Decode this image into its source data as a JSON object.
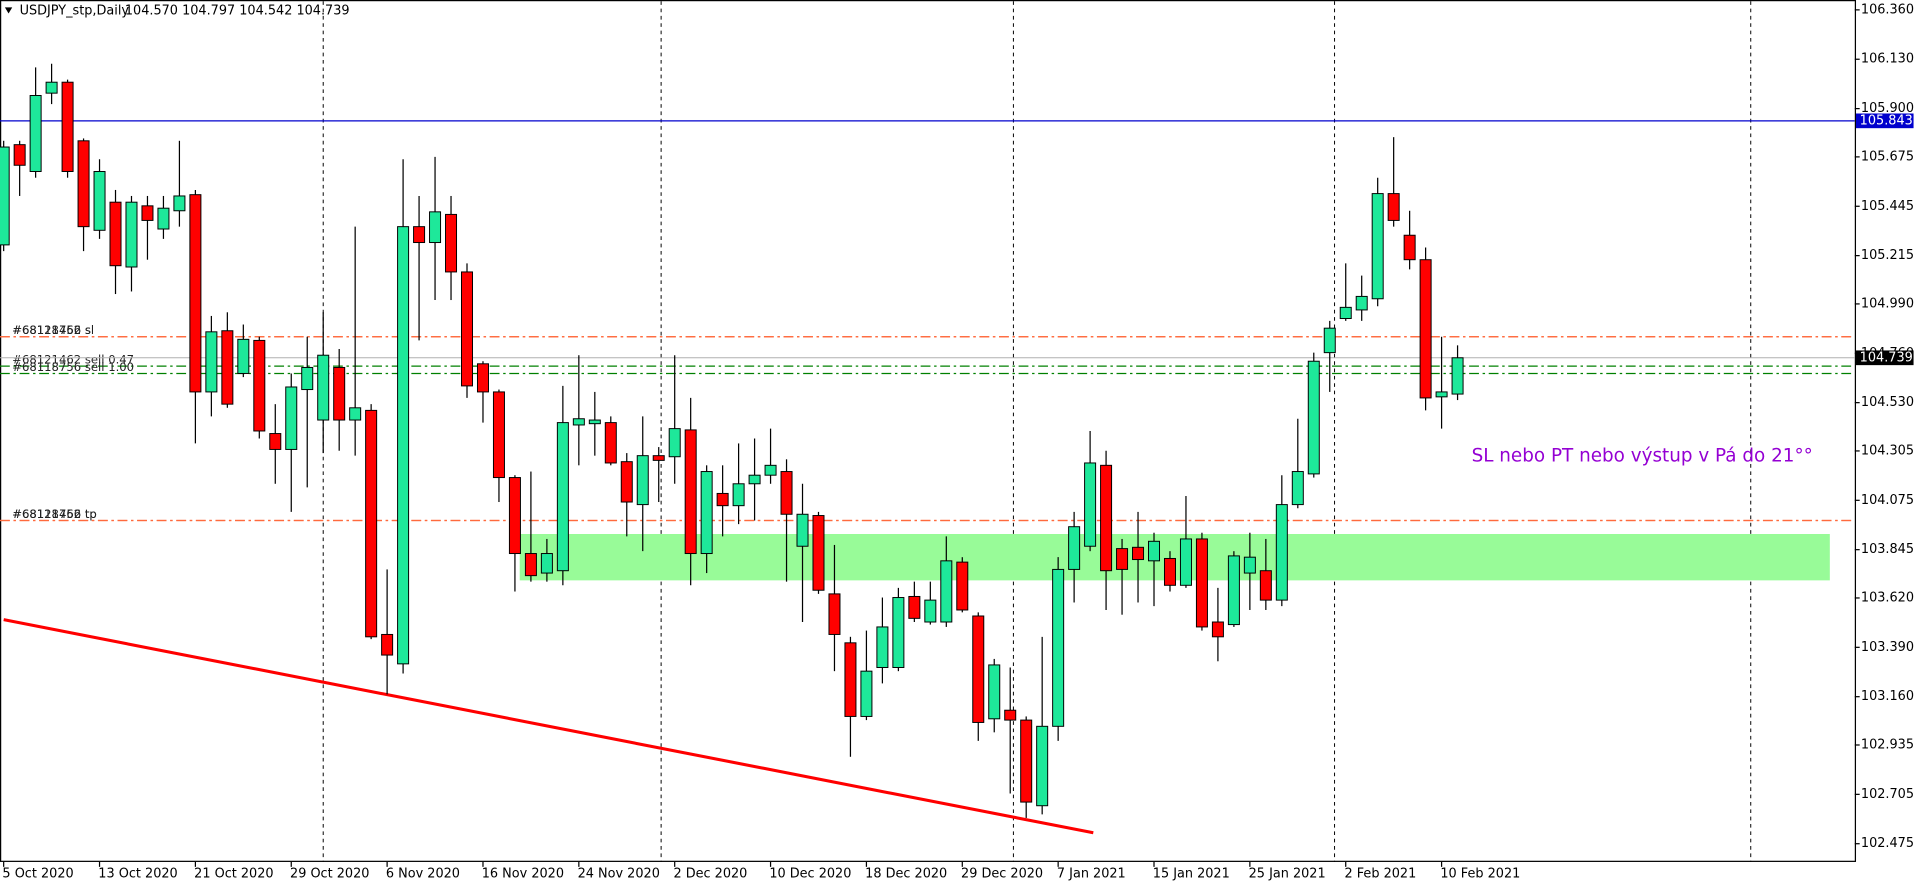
{
  "chart_data": {
    "type": "candlestick",
    "symbol": "USDJPY_stp,Daily",
    "ohlc_text": "104.570 104.797 104.542 104.739",
    "up_color": "#1ee89a",
    "down_color": "#ff0000",
    "categories": [
      "5 Oct 2020",
      null,
      null,
      null,
      null,
      null,
      "13 Oct 2020",
      null,
      null,
      null,
      null,
      null,
      "21 Oct 2020",
      null,
      null,
      null,
      null,
      null,
      "29 Oct 2020",
      null,
      null,
      null,
      null,
      null,
      "6 Nov 2020",
      null,
      null,
      null,
      null,
      null,
      "16 Nov 2020",
      null,
      null,
      null,
      null,
      null,
      "24 Nov 2020",
      null,
      null,
      null,
      null,
      null,
      "2 Dec 2020",
      null,
      null,
      null,
      null,
      null,
      "10 Dec 2020",
      null,
      null,
      null,
      null,
      null,
      "18 Dec 2020",
      null,
      null,
      null,
      null,
      null,
      "29 Dec 2020",
      null,
      null,
      null,
      null,
      null,
      "7 Jan 2021",
      null,
      null,
      null,
      null,
      null,
      "15 Jan 2021",
      null,
      null,
      null,
      null,
      null,
      "25 Jan 2021",
      null,
      null,
      null,
      null,
      null,
      "2 Feb 2021",
      null,
      null,
      null,
      null,
      null,
      "10 Feb 2021",
      null
    ],
    "open": [
      105.265,
      105.732,
      105.607,
      105.972,
      106.023,
      105.75,
      105.333,
      105.464,
      105.162,
      105.447,
      105.339,
      105.424,
      105.499,
      104.58,
      104.865,
      104.666,
      104.82,
      104.386,
      104.312,
      104.591,
      104.449,
      104.694,
      104.449,
      104.494,
      103.45,
      103.313,
      105.35,
      105.276,
      105.407,
      105.139,
      104.711,
      104.58,
      104.181,
      103.827,
      103.736,
      103.747,
      104.426,
      104.432,
      104.437,
      104.255,
      104.055,
      104.283,
      104.278,
      104.403,
      103.827,
      104.107,
      104.05,
      104.152,
      104.192,
      104.209,
      103.861,
      104.004,
      103.639,
      103.411,
      103.068,
      103.296,
      103.296,
      103.627,
      103.508,
      103.508,
      103.787,
      103.536,
      103.057,
      103.097,
      103.051,
      102.652,
      103.022,
      103.753,
      103.861,
      104.238,
      103.85,
      103.856,
      103.793,
      103.804,
      103.679,
      103.895,
      103.508,
      103.496,
      103.736,
      103.747,
      103.61,
      104.055,
      104.198,
      104.763,
      104.922,
      104.962,
      105.014,
      105.504,
      105.31,
      105.196,
      104.557,
      104.57
    ],
    "high": [
      105.75,
      105.75,
      106.092,
      106.109,
      106.035,
      105.761,
      105.664,
      105.521,
      105.493,
      105.493,
      105.493,
      105.75,
      105.521,
      104.934,
      104.951,
      104.894,
      104.837,
      104.523,
      104.666,
      104.837,
      104.951,
      104.78,
      105.35,
      104.523,
      103.753,
      105.664,
      105.493,
      105.675,
      105.493,
      105.179,
      104.723,
      104.591,
      104.192,
      104.209,
      103.895,
      104.608,
      104.751,
      104.58,
      104.466,
      104.295,
      104.466,
      104.323,
      104.751,
      104.552,
      104.238,
      104.238,
      104.34,
      104.363,
      104.409,
      104.266,
      104.152,
      104.021,
      103.867,
      103.439,
      103.468,
      103.622,
      103.667,
      103.696,
      103.696,
      103.907,
      103.81,
      103.553,
      103.336,
      103.296,
      103.068,
      103.439,
      103.81,
      104.021,
      104.398,
      104.306,
      103.895,
      104.021,
      103.924,
      103.838,
      104.095,
      103.924,
      103.667,
      103.838,
      103.924,
      103.895,
      104.192,
      104.455,
      104.763,
      104.911,
      105.179,
      105.122,
      105.578,
      105.767,
      105.424,
      105.253,
      104.837,
      104.797
    ],
    "low": [
      105.236,
      105.493,
      105.578,
      105.921,
      105.578,
      105.236,
      105.293,
      105.036,
      105.048,
      105.196,
      105.293,
      105.35,
      104.34,
      104.466,
      104.506,
      104.649,
      104.363,
      104.152,
      104.021,
      104.135,
      104.295,
      104.306,
      104.283,
      103.428,
      103.171,
      103.268,
      104.82,
      105.008,
      105.008,
      104.552,
      104.437,
      104.067,
      103.65,
      103.696,
      103.696,
      103.679,
      104.238,
      104.283,
      104.238,
      103.907,
      103.838,
      104.067,
      104.152,
      103.679,
      103.736,
      103.907,
      103.964,
      103.981,
      104.152,
      103.696,
      103.508,
      103.639,
      103.279,
      102.88,
      103.051,
      103.222,
      103.279,
      103.508,
      103.496,
      103.485,
      103.553,
      102.954,
      102.994,
      102.709,
      102.595,
      102.612,
      102.954,
      103.599,
      103.838,
      103.564,
      103.542,
      103.599,
      103.582,
      103.65,
      103.667,
      103.468,
      103.325,
      103.485,
      103.564,
      103.564,
      103.582,
      104.038,
      104.181,
      104.58,
      104.911,
      104.911,
      104.979,
      105.35,
      105.151,
      104.494,
      104.409,
      104.542
    ],
    "close": [
      105.721,
      105.636,
      105.961,
      106.023,
      105.607,
      105.35,
      105.607,
      105.168,
      105.464,
      105.379,
      105.436,
      105.493,
      104.58,
      104.86,
      104.523,
      104.825,
      104.398,
      104.312,
      104.603,
      104.694,
      104.751,
      104.449,
      104.506,
      103.439,
      103.354,
      105.35,
      105.276,
      105.419,
      105.139,
      104.608,
      104.58,
      104.181,
      103.827,
      103.724,
      103.827,
      104.437,
      104.455,
      104.449,
      104.249,
      104.067,
      104.283,
      104.261,
      104.409,
      103.827,
      104.209,
      104.05,
      104.152,
      104.192,
      104.238,
      104.01,
      104.01,
      103.656,
      103.45,
      103.068,
      103.279,
      103.485,
      103.622,
      103.525,
      103.61,
      103.793,
      103.564,
      103.04,
      103.308,
      103.051,
      102.669,
      103.022,
      103.753,
      103.952,
      104.249,
      103.747,
      103.753,
      103.799,
      103.884,
      103.679,
      103.895,
      103.485,
      103.439,
      103.816,
      103.81,
      103.61,
      104.055,
      104.209,
      104.723,
      104.877,
      104.974,
      105.025,
      105.504,
      105.379,
      105.196,
      104.552,
      104.58,
      104.739
    ],
    "ylim": [
      102.39,
      106.406
    ],
    "yticks": [
      {
        "value": 106.36,
        "label": "106.360"
      },
      {
        "value": 106.13,
        "label": "106.130"
      },
      {
        "value": 105.9,
        "label": "105.900"
      },
      {
        "value": 105.675,
        "label": "105.675"
      },
      {
        "value": 105.445,
        "label": "105.445"
      },
      {
        "value": 105.215,
        "label": "105.215"
      },
      {
        "value": 104.99,
        "label": "104.990"
      },
      {
        "value": 104.76,
        "label": "104.760"
      },
      {
        "value": 104.53,
        "label": "104.530"
      },
      {
        "value": 104.305,
        "label": "104.305"
      },
      {
        "value": 104.075,
        "label": "104.075"
      },
      {
        "value": 103.845,
        "label": "103.845"
      },
      {
        "value": 103.62,
        "label": "103.620"
      },
      {
        "value": 103.39,
        "label": "103.390"
      },
      {
        "value": 103.16,
        "label": "103.160"
      },
      {
        "value": 102.935,
        "label": "102.935"
      },
      {
        "value": 102.705,
        "label": "102.705"
      },
      {
        "value": 102.475,
        "label": "102.475"
      }
    ],
    "separators": [
      20.0,
      41.15,
      63.2,
      83.3,
      109.35
    ],
    "price_line": {
      "value": 105.843,
      "color": "#0000cd"
    },
    "orders": [
      {
        "label": "#68121462 sl",
        "price": 104.837,
        "color": "#ff6a3d"
      },
      {
        "label": "#68118756 sl",
        "price": 104.837,
        "color": "#ff6a3d"
      },
      {
        "label": "#68121462 sell 0.47",
        "price": 104.7,
        "color": "#008000"
      },
      {
        "label": "#68118756 sell 1.00",
        "price": 104.666,
        "color": "#008000"
      },
      {
        "label": "#68121462 tp",
        "price": 103.981,
        "color": "#ff6a3d"
      },
      {
        "label": "#68118756 tp",
        "price": 103.981,
        "color": "#ff6a3d"
      }
    ],
    "zone": {
      "x": [
        32.3,
        114.3
      ],
      "y": [
        103.702,
        103.918
      ],
      "color": "#98fb98"
    },
    "trendline": {
      "x": [
        0,
        68.2
      ],
      "y": [
        103.519,
        102.526
      ],
      "color": "#ff0000"
    },
    "annotation": {
      "text": "SL nebo PT nebo výstup v Pá do 21°°",
      "color": "#9400d3"
    }
  }
}
